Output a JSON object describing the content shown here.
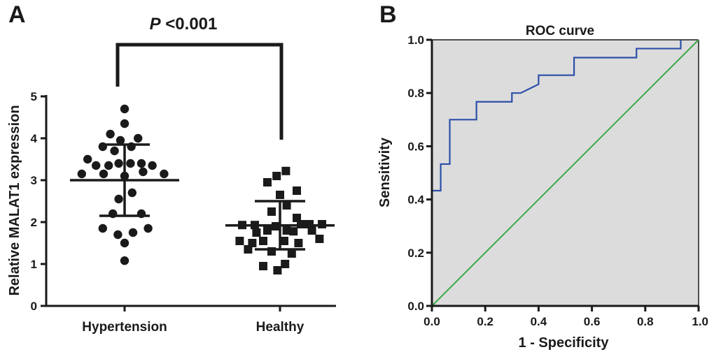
{
  "colors": {
    "ink": "#1a1a1a",
    "roc_curve": "#2b4fa8",
    "reference_line": "#3aaa4a",
    "plot_bg": "#dcdcdc"
  },
  "chart_data": [
    {
      "panel": "A",
      "type": "scatter",
      "title": "",
      "ylabel": "Relative  MALAT1 expression",
      "xlabel": "",
      "ylim": [
        0,
        5
      ],
      "yticks": [
        "0",
        "1",
        "2",
        "3",
        "4",
        "5"
      ],
      "categories": [
        "Hypertension",
        "Healthy"
      ],
      "annotation": {
        "italic": "P",
        "rest": " <0.001"
      },
      "series": [
        {
          "name": "Hypertension",
          "marker": "circle",
          "mean": 3.0,
          "sd_upper": 3.85,
          "sd_lower": 2.15,
          "points": [
            {
              "offset": 0.0,
              "value": 4.7
            },
            {
              "offset": 0.0,
              "value": 4.35
            },
            {
              "offset": -0.17,
              "value": 4.1
            },
            {
              "offset": -0.05,
              "value": 3.95
            },
            {
              "offset": 0.16,
              "value": 4.0
            },
            {
              "offset": 0.08,
              "value": 3.8
            },
            {
              "offset": -0.26,
              "value": 3.8
            },
            {
              "offset": -0.12,
              "value": 3.7
            },
            {
              "offset": -0.44,
              "value": 3.5
            },
            {
              "offset": -0.34,
              "value": 3.35
            },
            {
              "offset": -0.19,
              "value": 3.35
            },
            {
              "offset": -0.07,
              "value": 3.4
            },
            {
              "offset": 0.07,
              "value": 3.4
            },
            {
              "offset": 0.2,
              "value": 3.4
            },
            {
              "offset": 0.33,
              "value": 3.35
            },
            {
              "offset": -0.51,
              "value": 3.15
            },
            {
              "offset": 0.47,
              "value": 3.15
            },
            {
              "offset": -0.25,
              "value": 3.15
            },
            {
              "offset": 0.0,
              "value": 3.1
            },
            {
              "offset": 0.22,
              "value": 3.2
            },
            {
              "offset": 0.09,
              "value": 2.7
            },
            {
              "offset": -0.07,
              "value": 2.55
            },
            {
              "offset": -0.14,
              "value": 2.2
            },
            {
              "offset": 0.2,
              "value": 2.2
            },
            {
              "offset": -0.26,
              "value": 1.85
            },
            {
              "offset": 0.28,
              "value": 1.85
            },
            {
              "offset": 0.1,
              "value": 1.75
            },
            {
              "offset": -0.08,
              "value": 1.7
            },
            {
              "offset": 0.0,
              "value": 1.5
            },
            {
              "offset": 0.0,
              "value": 1.08
            }
          ]
        },
        {
          "name": "Healthy",
          "marker": "square",
          "mean": 1.92,
          "sd_upper": 2.5,
          "sd_lower": 1.35,
          "points": [
            {
              "offset": 0.07,
              "value": 3.22
            },
            {
              "offset": -0.04,
              "value": 3.1
            },
            {
              "offset": -0.15,
              "value": 2.95
            },
            {
              "offset": 0.2,
              "value": 2.75
            },
            {
              "offset": 0.0,
              "value": 2.65
            },
            {
              "offset": 0.08,
              "value": 2.4
            },
            {
              "offset": -0.1,
              "value": 2.25
            },
            {
              "offset": 0.2,
              "value": 2.1
            },
            {
              "offset": 0.25,
              "value": 1.95
            },
            {
              "offset": -0.45,
              "value": 1.93
            },
            {
              "offset": -0.3,
              "value": 1.93
            },
            {
              "offset": -0.05,
              "value": 1.9
            },
            {
              "offset": 0.35,
              "value": 1.95
            },
            {
              "offset": 0.5,
              "value": 1.95
            },
            {
              "offset": -0.15,
              "value": 1.8
            },
            {
              "offset": 0.08,
              "value": 1.8
            },
            {
              "offset": 0.16,
              "value": 1.78
            },
            {
              "offset": 0.38,
              "value": 1.8
            },
            {
              "offset": -0.28,
              "value": 1.75
            },
            {
              "offset": -0.48,
              "value": 1.55
            },
            {
              "offset": -0.33,
              "value": 1.5
            },
            {
              "offset": -0.2,
              "value": 1.55
            },
            {
              "offset": 0.05,
              "value": 1.55
            },
            {
              "offset": 0.22,
              "value": 1.5
            },
            {
              "offset": 0.47,
              "value": 1.6
            },
            {
              "offset": -0.38,
              "value": 1.35
            },
            {
              "offset": -0.1,
              "value": 1.3
            },
            {
              "offset": 0.14,
              "value": 1.25
            },
            {
              "offset": 0.06,
              "value": 1.0
            },
            {
              "offset": -0.2,
              "value": 0.95
            },
            {
              "offset": -0.03,
              "value": 0.85
            }
          ]
        }
      ]
    },
    {
      "panel": "B",
      "type": "line",
      "title": "ROC curve",
      "xlabel": "1 - Specificity",
      "ylabel": "Sensitivity",
      "xlim": [
        0,
        1
      ],
      "ylim": [
        0,
        1
      ],
      "xticks": [
        "0.0",
        "0.2",
        "0.4",
        "0.6",
        "0.8",
        "1.0"
      ],
      "yticks": [
        "0.0",
        "0.2",
        "0.4",
        "0.6",
        "0.8",
        "1.0"
      ],
      "series": [
        {
          "name": "ROC",
          "x": [
            0,
            0,
            0.033,
            0.033,
            0.067,
            0.067,
            0.167,
            0.167,
            0.3,
            0.3,
            0.333,
            0.4,
            0.4,
            0.533,
            0.533,
            0.767,
            0.767,
            0.933,
            0.933
          ],
          "y": [
            0,
            0.433,
            0.433,
            0.533,
            0.533,
            0.7,
            0.7,
            0.767,
            0.767,
            0.8,
            0.8,
            0.833,
            0.867,
            0.867,
            0.933,
            0.933,
            0.967,
            0.967,
            1.0
          ]
        },
        {
          "name": "Reference",
          "x": [
            0,
            1
          ],
          "y": [
            0,
            1
          ]
        }
      ]
    }
  ]
}
